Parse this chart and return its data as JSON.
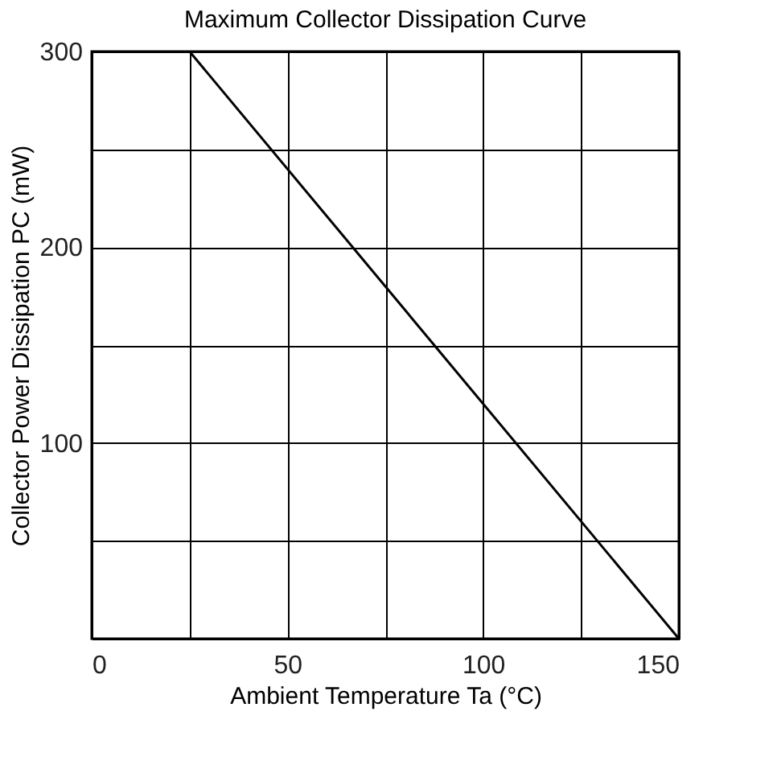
{
  "chart_data": {
    "type": "line",
    "title": "Maximum Collector Dissipation Curve",
    "xlabel": "Ambient Temperature  Ta  (°C)",
    "ylabel": "Collector Power Dissipation  PC  (mW)",
    "x": [
      25,
      150
    ],
    "series": [
      {
        "color": "#000000",
        "values": [
          300,
          0
        ]
      }
    ],
    "xlim": [
      0,
      150
    ],
    "ylim": [
      0,
      300
    ],
    "xticks": [
      0,
      {
        "value": 25,
        "label": null
      },
      50,
      {
        "value": 75,
        "label": null
      },
      100,
      {
        "value": 125,
        "label": null
      },
      150
    ],
    "yticks": [
      {
        "value": 0,
        "label": null
      },
      {
        "value": 50,
        "label": null
      },
      100,
      {
        "value": 150,
        "label": null
      },
      200,
      {
        "value": 250,
        "label": null
      },
      300
    ],
    "grid": true,
    "legend": false,
    "marker": "none",
    "line_style": "solid"
  }
}
